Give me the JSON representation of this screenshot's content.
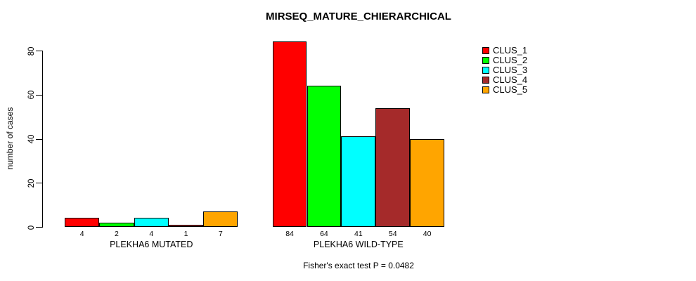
{
  "chart_data": {
    "type": "bar",
    "title": "MIRSEQ_MATURE_CHIERARCHICAL",
    "ylabel": "number of cases",
    "xlabel": "",
    "ylim": [
      0,
      80
    ],
    "yticks": [
      0,
      20,
      40,
      60,
      80
    ],
    "grid": false,
    "legend_position": "top-right",
    "series_names": [
      "CLUS_1",
      "CLUS_2",
      "CLUS_3",
      "CLUS_4",
      "CLUS_5"
    ],
    "colors": [
      "#FF0000",
      "#00FF00",
      "#00FFFF",
      "#A52A2A",
      "#FFA500"
    ],
    "groups": [
      {
        "label": "PLEKHA6 MUTATED",
        "values": [
          4,
          2,
          4,
          1,
          7
        ]
      },
      {
        "label": "PLEKHA6 WILD-TYPE",
        "values": [
          84,
          64,
          41,
          54,
          40
        ]
      }
    ],
    "footnote": "Fisher's exact test P = 0.0482",
    "background": "#FFFFFF"
  }
}
